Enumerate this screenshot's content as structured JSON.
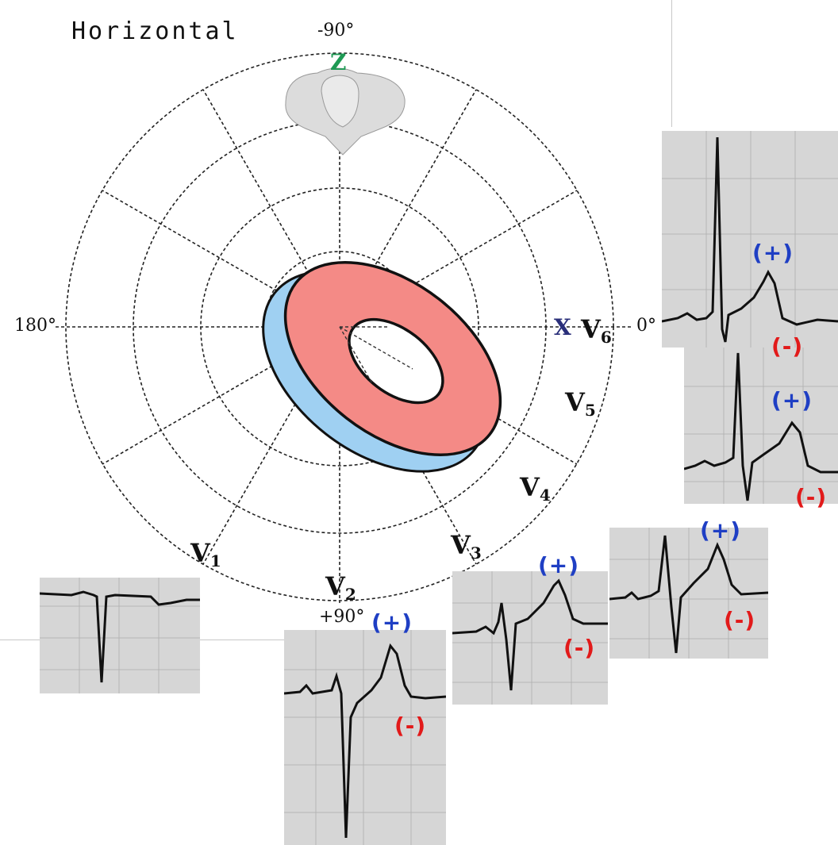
{
  "title": "Horizontal",
  "angles": {
    "top": "-90°",
    "bottom": "+90°",
    "left": "180°",
    "right": "0°"
  },
  "axes": {
    "z": "Z",
    "x": "X"
  },
  "leads": [
    {
      "name": "V",
      "sub": "1"
    },
    {
      "name": "V",
      "sub": "2"
    },
    {
      "name": "V",
      "sub": "3"
    },
    {
      "name": "V",
      "sub": "4"
    },
    {
      "name": "V",
      "sub": "5"
    },
    {
      "name": "V",
      "sub": "6"
    }
  ],
  "polarity": {
    "positive": "(+)",
    "negative": "(-)"
  },
  "colors": {
    "heart_ring": "#f48a86",
    "back_ring": "#9fd0f2",
    "z_axis": "#1e9a54",
    "x_axis": "#2a2f7a",
    "positive": "#1f3fc4",
    "negative": "#e21a1a",
    "ecg_paper": "#d6d6d6"
  }
}
